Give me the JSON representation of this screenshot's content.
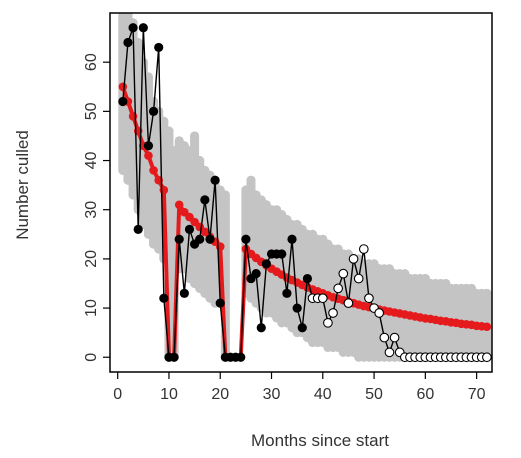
{
  "chart_data": {
    "type": "scatter",
    "xlabel": "Months since start",
    "ylabel": "Number culled",
    "xlim": [
      -1.5,
      73
    ],
    "ylim": [
      -3,
      70
    ],
    "x_ticks": [
      0,
      10,
      20,
      30,
      40,
      50,
      60,
      70
    ],
    "x_tick_labels": [
      "0",
      "10",
      "20",
      "30",
      "40",
      "50",
      "60",
      "70"
    ],
    "y_ticks": [
      0,
      10,
      20,
      30,
      40,
      50,
      60
    ],
    "y_tick_labels": [
      "0",
      "10",
      "20",
      "30",
      "40",
      "50",
      "60"
    ],
    "grid": false,
    "legend": "none",
    "colors": {
      "band": "#c4c4c4",
      "model": "#e41a1c",
      "observed": "#000000",
      "held_out_fill": "#ffffff",
      "frame": "#000000",
      "axis_text": "#333333"
    },
    "simulation_band": {
      "x": [
        1,
        2,
        3,
        4,
        5,
        6,
        7,
        8,
        9,
        10,
        11,
        12,
        13,
        14,
        15,
        16,
        17,
        18,
        19,
        20,
        21,
        22,
        23,
        24,
        25,
        26,
        27,
        28,
        29,
        30,
        31,
        32,
        33,
        34,
        35,
        36,
        37,
        38,
        39,
        40,
        41,
        42,
        43,
        44,
        45,
        46,
        47,
        48,
        49,
        50,
        51,
        52,
        53,
        54,
        55,
        56,
        57,
        58,
        59,
        60,
        61,
        62,
        63,
        64,
        65,
        66,
        67,
        68,
        69,
        70,
        71,
        72
      ],
      "low": [
        38,
        36,
        33,
        30,
        27,
        25,
        23,
        22,
        20,
        0,
        0,
        18,
        18,
        16,
        15,
        14,
        13,
        12,
        11,
        11,
        0,
        0,
        0,
        0,
        13,
        12,
        11,
        10,
        9,
        9,
        8,
        7,
        7,
        6,
        5,
        5,
        4,
        3,
        3,
        3,
        2,
        2,
        2,
        1,
        1,
        1,
        0,
        0,
        0,
        0,
        0,
        0,
        0,
        0,
        0,
        0,
        0,
        0,
        0,
        0,
        0,
        0,
        0,
        0,
        0,
        0,
        0,
        0,
        0,
        0,
        0,
        0
      ],
      "high": [
        70,
        70,
        68,
        64,
        60,
        57,
        52,
        50,
        48,
        46,
        42,
        44,
        43,
        42,
        45,
        40,
        38,
        37,
        36,
        34,
        33,
        0,
        0,
        0,
        34,
        36,
        33,
        32,
        31,
        30,
        30,
        29,
        28,
        27,
        27,
        26,
        25,
        25,
        24,
        24,
        23,
        22,
        22,
        21,
        21,
        20,
        20,
        19,
        19,
        19,
        18,
        18,
        18,
        17,
        17,
        17,
        16,
        16,
        16,
        16,
        15,
        15,
        15,
        15,
        14,
        14,
        14,
        14,
        14,
        13,
        13,
        13
      ]
    },
    "model_fit": {
      "x": [
        1,
        2,
        3,
        4,
        5,
        6,
        7,
        8,
        9,
        10,
        11,
        12,
        13,
        14,
        15,
        16,
        17,
        18,
        19,
        20,
        21,
        22,
        23,
        24,
        25,
        26,
        27,
        28,
        29,
        30,
        31,
        32,
        33,
        34,
        35,
        36,
        37,
        38,
        39,
        40,
        41,
        42,
        43,
        44,
        45,
        46,
        47,
        48,
        49,
        50,
        51,
        52,
        53,
        54,
        55,
        56,
        57,
        58,
        59,
        60,
        61,
        62,
        63,
        64,
        65,
        66,
        67,
        68,
        69,
        70,
        71,
        72
      ],
      "y": [
        55,
        52,
        49,
        46,
        43,
        41,
        38,
        36,
        34,
        0,
        0,
        31,
        29.5,
        28.5,
        27.5,
        26.5,
        25.5,
        24.5,
        23.5,
        22.5,
        0,
        0,
        0,
        0,
        22,
        21,
        20.2,
        19.4,
        18.7,
        18,
        17.4,
        16.8,
        16.2,
        15.7,
        15.2,
        14.7,
        14.2,
        13.8,
        13.4,
        13,
        12.6,
        12.2,
        11.9,
        11.6,
        11.3,
        11,
        10.7,
        10.4,
        10.2,
        9.9,
        9.7,
        9.5,
        9.3,
        9.1,
        8.9,
        8.7,
        8.5,
        8.3,
        8.1,
        7.9,
        7.8,
        7.6,
        7.4,
        7.3,
        7.1,
        7,
        6.8,
        6.7,
        6.6,
        6.4,
        6.3,
        6.2
      ]
    },
    "observed": {
      "x": [
        1,
        2,
        3,
        4,
        5,
        6,
        7,
        8,
        9,
        10,
        11,
        12,
        13,
        14,
        15,
        16,
        17,
        18,
        19,
        20,
        21,
        22,
        23,
        24,
        25,
        26,
        27,
        28,
        29,
        30,
        31,
        32,
        33,
        34,
        35,
        36,
        37
      ],
      "y": [
        52,
        64,
        67,
        26,
        67,
        43,
        50,
        63,
        12,
        0,
        0,
        24,
        13,
        26,
        23,
        24,
        32,
        24,
        36,
        11,
        0,
        0,
        0,
        0,
        24,
        16,
        17,
        6,
        19,
        21,
        21,
        21,
        13,
        24,
        10,
        6,
        16
      ]
    },
    "held_out": {
      "x": [
        38,
        39,
        40,
        41,
        42,
        43,
        44,
        45,
        46,
        47,
        48,
        49,
        50,
        51,
        52,
        53,
        54,
        55,
        56,
        57,
        58,
        59,
        60,
        61,
        62,
        63,
        64,
        65,
        66,
        67,
        68,
        69,
        70,
        71,
        72
      ],
      "y": [
        12,
        12,
        12,
        7,
        9,
        14,
        17,
        11,
        20,
        16,
        22,
        12,
        10,
        9,
        4,
        1,
        4,
        1,
        0,
        0,
        0,
        0,
        0,
        0,
        0,
        0,
        0,
        0,
        0,
        0,
        0,
        0,
        0,
        0,
        0
      ]
    }
  }
}
